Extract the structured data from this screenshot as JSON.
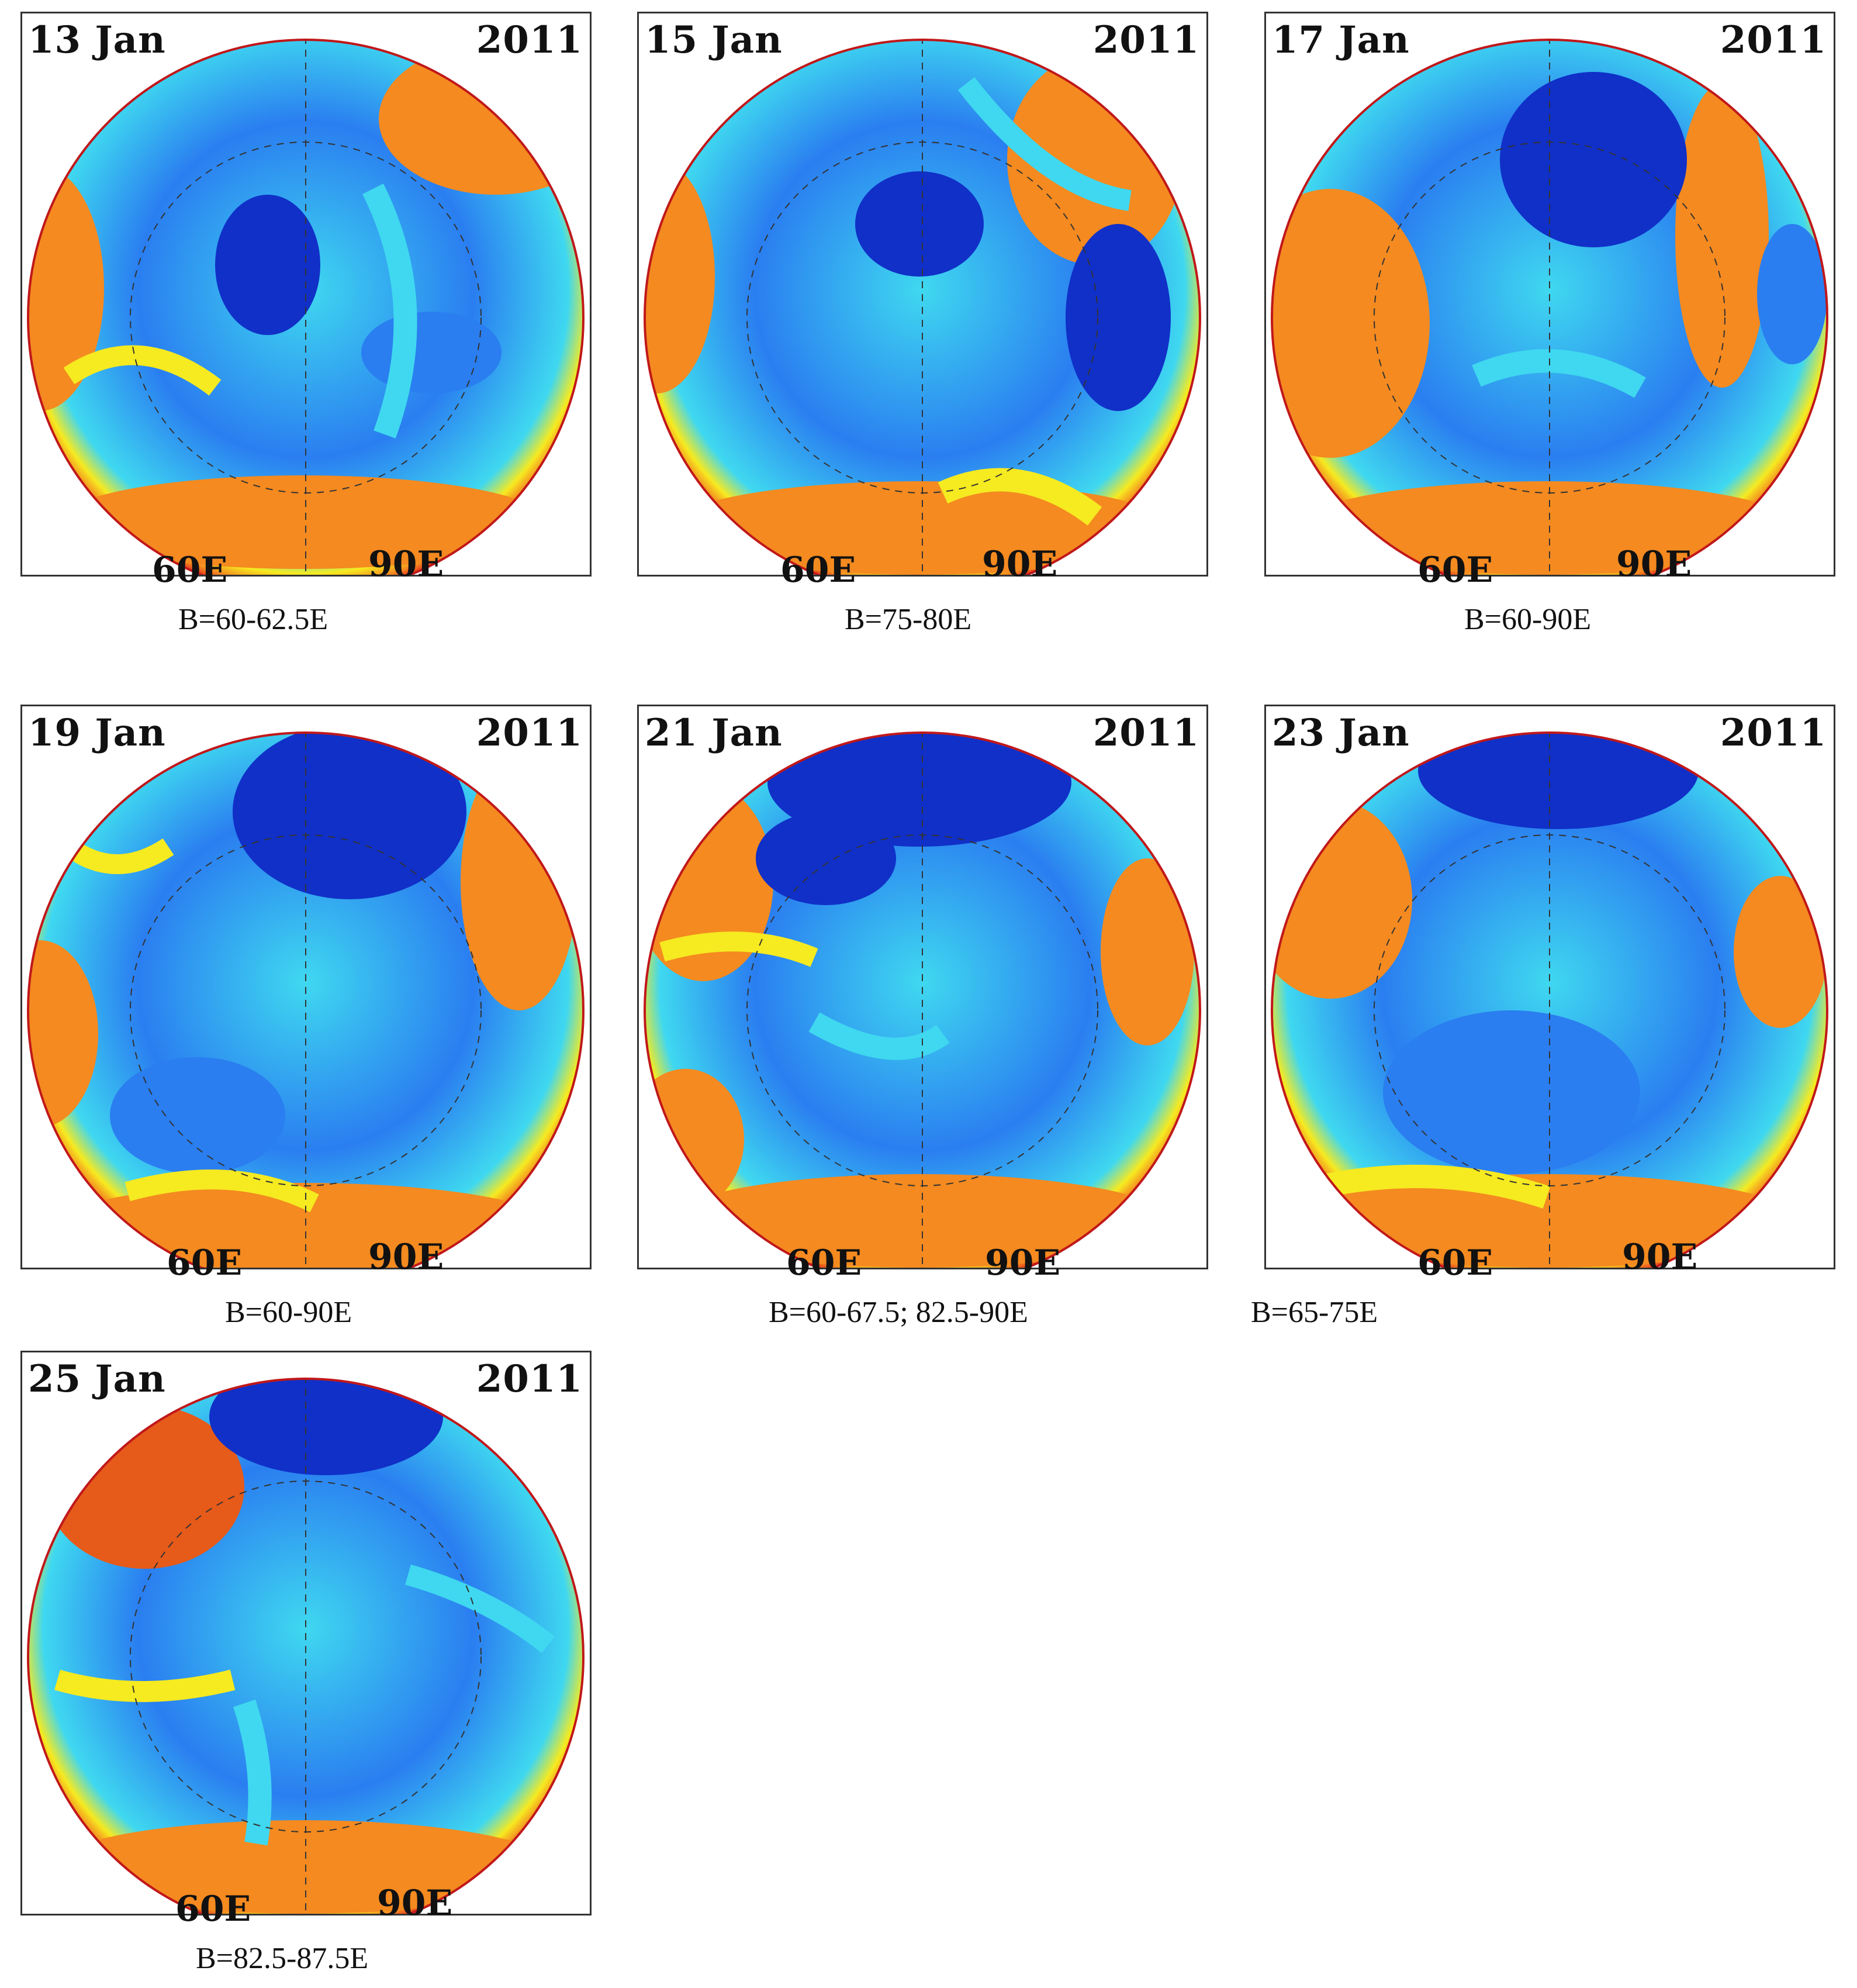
{
  "colors": {
    "low": "#1030c8",
    "mid_low": "#2a7ef0",
    "mid": "#3fd8f0",
    "mid_high": "#f6ea20",
    "high": "#f48a20",
    "edge": "#e0201a"
  },
  "panels": [
    {
      "date": "13 Jan",
      "year": "2011",
      "lon_left": "60E",
      "lon_right": "90E",
      "caption": "B=60-62.5E"
    },
    {
      "date": "15 Jan",
      "year": "2011",
      "lon_left": "60E",
      "lon_right": "90E",
      "caption": "B=75-80E"
    },
    {
      "date": "17 Jan",
      "year": "2011",
      "lon_left": "60E",
      "lon_right": "90E",
      "caption": "B=60-90E"
    },
    {
      "date": "19 Jan",
      "year": "2011",
      "lon_left": "60E",
      "lon_right": "90E",
      "caption": "B=60-90E"
    },
    {
      "date": "21 Jan",
      "year": "2011",
      "lon_left": "60E",
      "lon_right": "90E",
      "caption": "B=60-67.5; 82.5-90E"
    },
    {
      "date": "23 Jan",
      "year": "2011",
      "lon_left": "60E",
      "lon_right": "90E",
      "caption": "B=65-75E"
    },
    {
      "date": "25 Jan",
      "year": "2011",
      "lon_left": "60E",
      "lon_right": "90E",
      "caption": "B=82.5-87.5E"
    }
  ]
}
